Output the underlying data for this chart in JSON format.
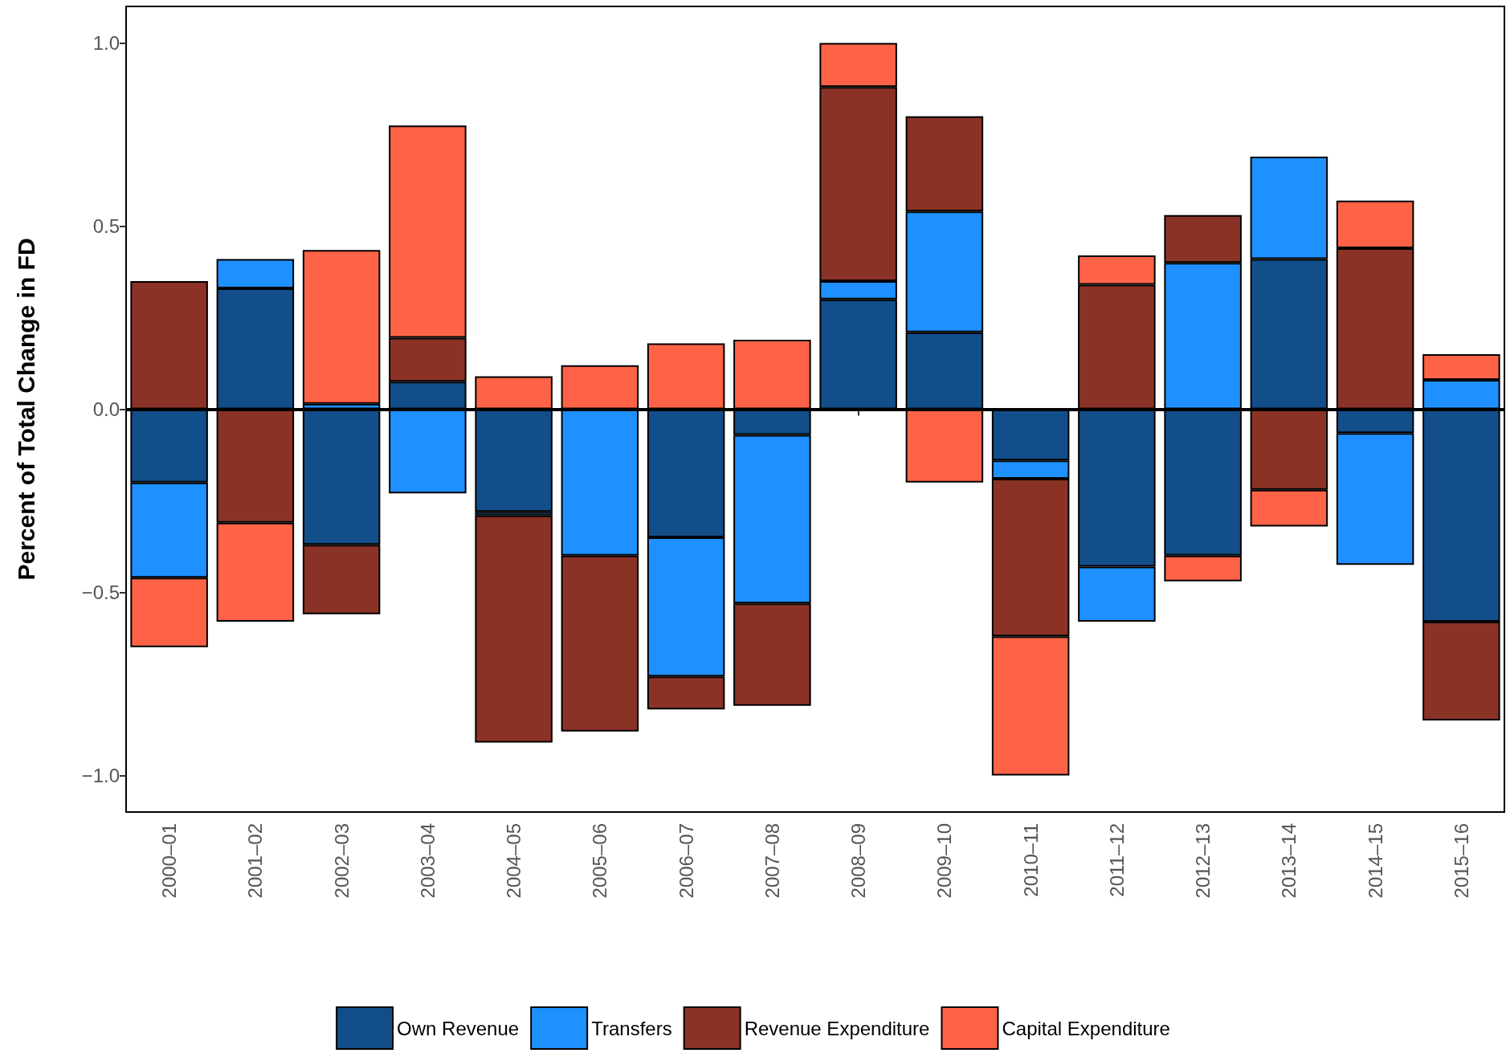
{
  "chart_data": {
    "type": "bar",
    "stacked": true,
    "ylabel": "Percent of Total Change in FD",
    "categories": [
      "2000–01",
      "2001–02",
      "2002–03",
      "2003–04",
      "2004–05",
      "2005–06",
      "2006–07",
      "2007–08",
      "2008–09",
      "2009–10",
      "2010–11",
      "2011–12",
      "2012–13",
      "2013–14",
      "2014–15",
      "2015–16"
    ],
    "series": [
      {
        "name": "Own Revenue",
        "color": "#124e89",
        "values": [
          -0.2,
          0.33,
          -0.37,
          0.075,
          -0.28,
          0,
          -0.35,
          -0.07,
          0.3,
          0.21,
          -0.14,
          -0.43,
          -0.4,
          0.41,
          -0.065,
          -0.58
        ]
      },
      {
        "name": "Transfers",
        "color": "#1e90ff",
        "values": [
          -0.26,
          0.08,
          0.015,
          -0.23,
          -0.01,
          -0.4,
          -0.38,
          -0.46,
          0.05,
          0.33,
          -0.05,
          -0.15,
          0.4,
          0.28,
          -0.36,
          0.08
        ]
      },
      {
        "name": "Revenue Expenditure",
        "color": "#8b3226",
        "values": [
          0.35,
          -0.31,
          -0.19,
          0.12,
          -0.62,
          -0.48,
          -0.09,
          -0.28,
          0.53,
          0.26,
          -0.43,
          0.34,
          0.13,
          -0.22,
          0.44,
          -0.27
        ]
      },
      {
        "name": "Capital Expenditure",
        "color": "#ff6347",
        "values": [
          -0.19,
          -0.27,
          0.42,
          0.58,
          0.09,
          0.12,
          0.18,
          0.19,
          0.12,
          -0.2,
          -0.38,
          0.08,
          -0.07,
          -0.1,
          0.13,
          0.07
        ]
      }
    ],
    "ylim": [
      -1.1,
      1.1
    ],
    "yticks": [
      {
        "value": -1,
        "label": "−1.0"
      },
      {
        "value": -0.5,
        "label": "−0.5"
      },
      {
        "value": 0,
        "label": "0.0"
      },
      {
        "value": 0.5,
        "label": "0.5"
      },
      {
        "value": 1,
        "label": "1.0"
      }
    ],
    "ref_lines": [
      {
        "axis": "y",
        "value": 0,
        "color": "#000000",
        "line_style": "solid"
      }
    ],
    "grid": false,
    "legend": "bottom"
  }
}
